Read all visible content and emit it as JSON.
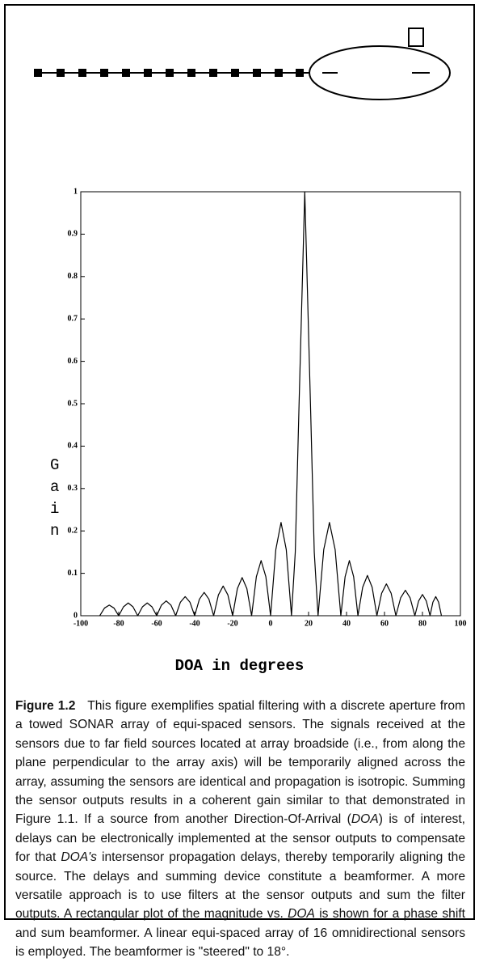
{
  "chart_data": {
    "type": "line",
    "x": [
      -90,
      -87.5,
      -85,
      -82.5,
      -80,
      -77.5,
      -75,
      -72.5,
      -70,
      -67.5,
      -65,
      -62.5,
      -60,
      -57.5,
      -55,
      -52.5,
      -50,
      -47.5,
      -45,
      -42.5,
      -40,
      -37.5,
      -35,
      -32.5,
      -30,
      -27.5,
      -25,
      -22.5,
      -20,
      -17.5,
      -15,
      -12.5,
      -10,
      -7.5,
      -5,
      -2.5,
      0,
      2.75,
      5.5,
      8.25,
      11,
      13,
      15,
      18,
      21,
      23,
      25,
      28,
      31,
      34,
      37,
      39.25,
      41.5,
      43.75,
      46,
      48.5,
      51,
      53.5,
      56,
      58.5,
      61,
      63.5,
      66,
      68.5,
      71,
      73.5,
      76,
      78,
      80,
      82,
      84,
      85.5,
      87,
      88.5,
      90
    ],
    "series": [
      {
        "color": "#000000",
        "values": [
          0,
          0.018,
          0.025,
          0.018,
          0,
          0.021,
          0.03,
          0.021,
          0,
          0.021,
          0.03,
          0.021,
          0,
          0.025,
          0.035,
          0.025,
          0,
          0.032,
          0.045,
          0.032,
          0,
          0.039,
          0.055,
          0.039,
          0,
          0.049,
          0.07,
          0.049,
          0,
          0.064,
          0.09,
          0.064,
          0,
          0.092,
          0.13,
          0.092,
          0,
          0.156,
          0.22,
          0.156,
          0,
          0.15,
          0.5,
          1,
          0.5,
          0.15,
          0,
          0.156,
          0.22,
          0.156,
          0,
          0.092,
          0.13,
          0.092,
          0,
          0.067,
          0.095,
          0.067,
          0,
          0.053,
          0.075,
          0.053,
          0,
          0.042,
          0.06,
          0.042,
          0,
          0.035,
          0.05,
          0.035,
          0,
          0.032,
          0.045,
          0.032,
          0
        ]
      }
    ],
    "xlim": [
      -100,
      100
    ],
    "ylim": [
      0,
      1
    ],
    "xticks": [
      -100,
      -80,
      -60,
      -40,
      -20,
      0,
      20,
      40,
      60,
      80,
      100
    ],
    "yticks": [
      0,
      0.1,
      0.2,
      0.3,
      0.4,
      0.5,
      0.6,
      0.7,
      0.8,
      0.9,
      1
    ],
    "xlabel": "DOA in degrees",
    "ylabel": "Gain"
  },
  "caption": {
    "label": "Figure 1.2",
    "runs": [
      {
        "text": "This figure exemplifies spatial filtering with a discrete aperture from a towed SONAR array of equi-spaced sensors. The signals received at the sensors due to far field sources located at array broadside (i.e., from along the plane perpendicular to the array axis) will be temporarily aligned across the array, assuming the sensors are identical and propagation is isotropic. Summing the sensor outputs results in a coherent gain similar to that demonstrated in Figure 1.1. If a source from another Direction-Of-Arrival ("
      },
      {
        "text": "DOA",
        "italic": true
      },
      {
        "text": ") is of interest, delays can be electronically implemented at the sensor outputs to compensate for that "
      },
      {
        "text": "DOA's",
        "italic": true
      },
      {
        "text": " intersensor propagation delays, thereby temporarily aligning the source. The delays and summing device constitute a beamformer. A more versatile approach is to use filters at the sensor outputs and sum the filter outputs. A rectangular plot of the magnitude vs. "
      },
      {
        "text": "DOA",
        "italic": true
      },
      {
        "text": " is shown for a phase shift and sum beamformer. A linear equi-spaced array of 16 omnidirectional sensors is employed. The beamformer is \"steered\" to 18°."
      }
    ]
  }
}
